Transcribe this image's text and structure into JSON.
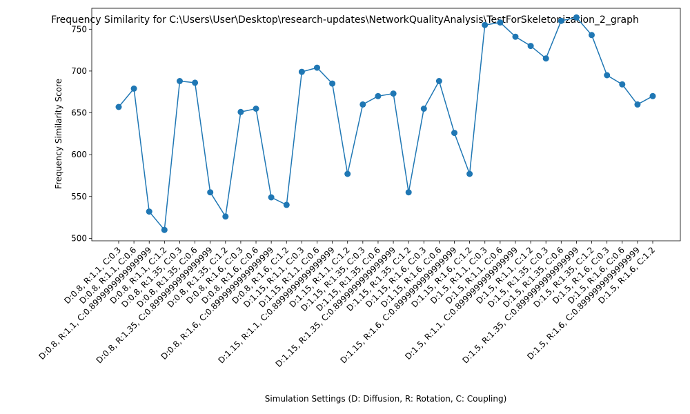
{
  "chart_data": {
    "type": "line",
    "title": "Frequency Similarity for C:\\Users\\User\\Desktop\\research-updates\\NetworkQualityAnalysis\\TestForSkeletonization_2_graph",
    "xlabel": "Simulation Settings (D: Diffusion, R: Rotation, C: Coupling)",
    "ylabel": "Frequency Similarity Score",
    "ylim": [
      497,
      775
    ],
    "yticks": [
      "500",
      "550",
      "600",
      "650",
      "700",
      "750"
    ],
    "grid": false,
    "legend": "none",
    "colors": {
      "line": "#1f77b4"
    },
    "categories": [
      "D:0.8, R:1.1, C:0.3",
      "D:0.8, R:1.1, C:0.6",
      "D:0.8, R:1.1, C:0.8999999999999999",
      "D:0.8, R:1.1, C:1.2",
      "D:0.8, R:1.35, C:0.3",
      "D:0.8, R:1.35, C:0.6",
      "D:0.8, R:1.35, C:0.8999999999999999",
      "D:0.8, R:1.35, C:1.2",
      "D:0.8, R:1.6, C:0.3",
      "D:0.8, R:1.6, C:0.6",
      "D:0.8, R:1.6, C:0.8999999999999999",
      "D:0.8, R:1.6, C:1.2",
      "D:1.15, R:1.1, C:0.3",
      "D:1.15, R:1.1, C:0.6",
      "D:1.15, R:1.1, C:0.8999999999999999",
      "D:1.15, R:1.1, C:1.2",
      "D:1.15, R:1.35, C:0.3",
      "D:1.15, R:1.35, C:0.6",
      "D:1.15, R:1.35, C:0.8999999999999999",
      "D:1.15, R:1.35, C:1.2",
      "D:1.15, R:1.6, C:0.3",
      "D:1.15, R:1.6, C:0.6",
      "D:1.15, R:1.6, C:0.8999999999999999",
      "D:1.15, R:1.6, C:1.2",
      "D:1.5, R:1.1, C:0.3",
      "D:1.5, R:1.1, C:0.6",
      "D:1.5, R:1.1, C:0.8999999999999999",
      "D:1.5, R:1.1, C:1.2",
      "D:1.5, R:1.35, C:0.3",
      "D:1.5, R:1.35, C:0.6",
      "D:1.5, R:1.35, C:0.8999999999999999",
      "D:1.5, R:1.35, C:1.2",
      "D:1.5, R:1.6, C:0.3",
      "D:1.5, R:1.6, C:0.6",
      "D:1.5, R:1.6, C:0.8999999999999999",
      "D:1.5, R:1.6, C:1.2"
    ],
    "values": [
      657,
      679,
      532,
      510,
      688,
      686,
      555,
      526,
      651,
      655,
      549,
      540,
      699,
      704,
      685,
      577,
      660,
      670,
      673,
      555,
      655,
      688,
      626,
      577,
      755,
      758,
      741,
      730,
      715,
      760,
      764,
      743,
      695,
      684,
      660,
      670
    ]
  }
}
